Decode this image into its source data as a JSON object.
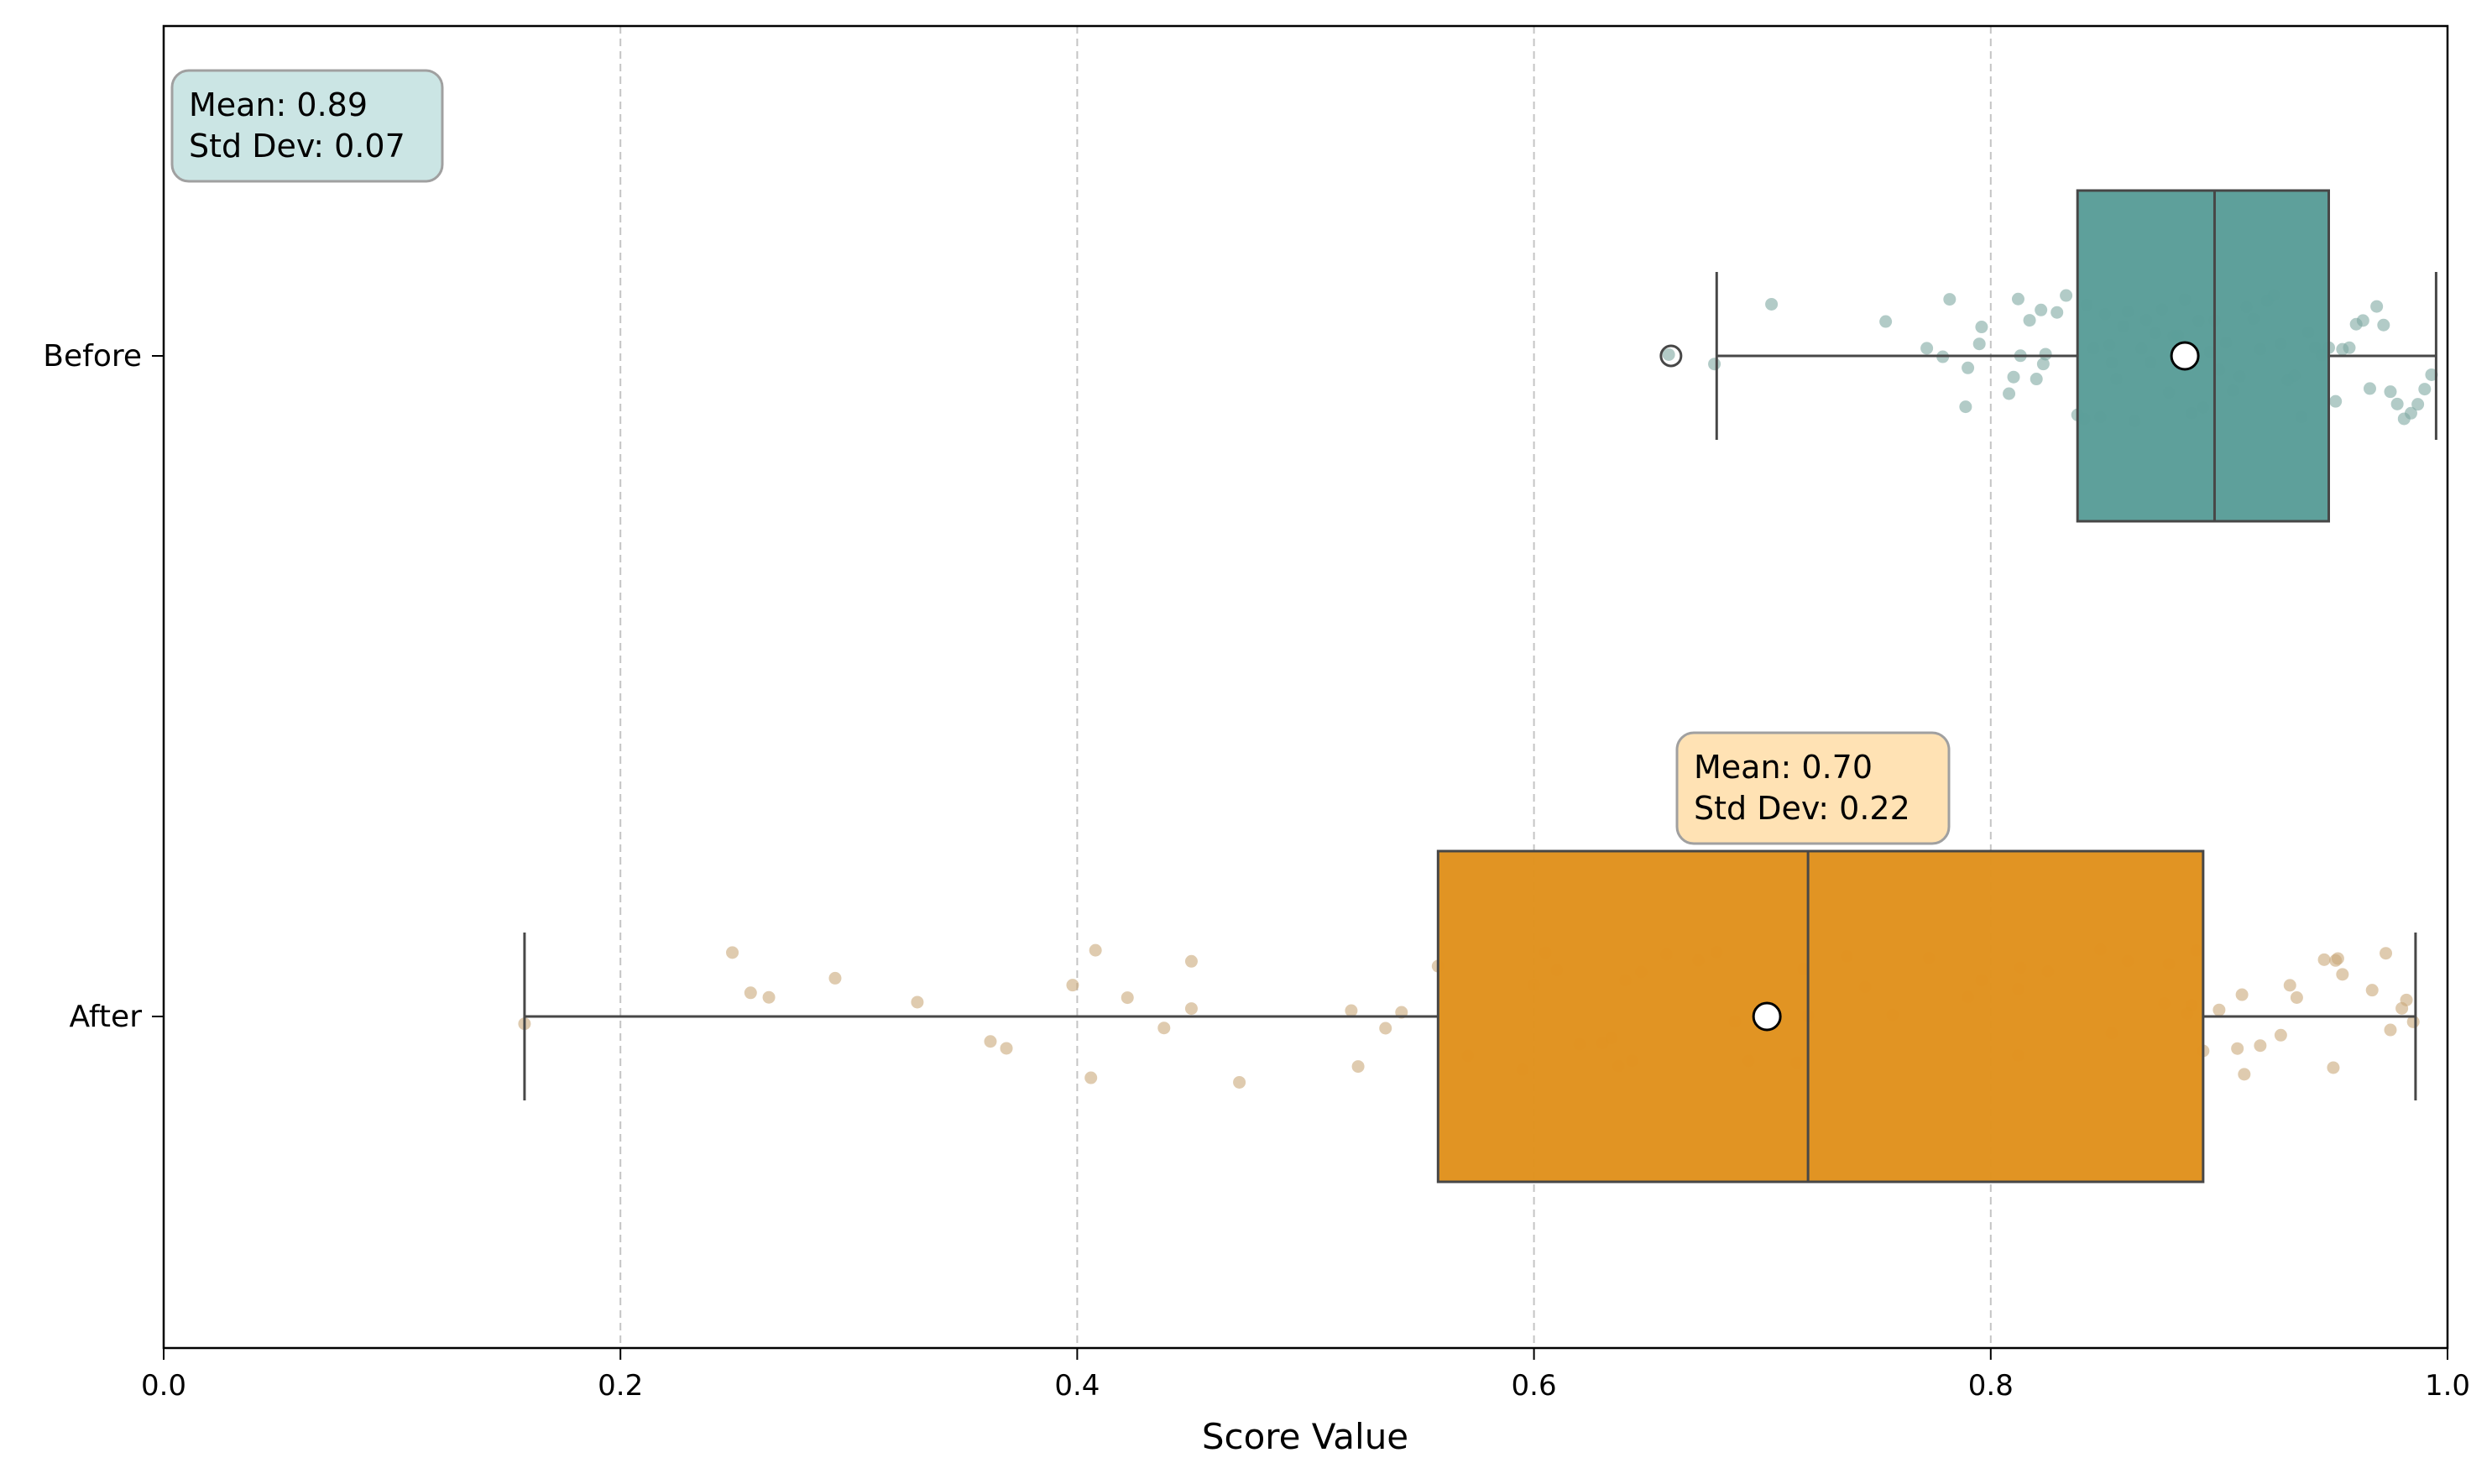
{
  "chart_data": {
    "type": "box",
    "orientation": "horizontal",
    "xlabel": "Score Value",
    "xlim": [
      0.0,
      1.0
    ],
    "xticks": [
      "0.0",
      "0.2",
      "0.4",
      "0.6",
      "0.8",
      "1.0"
    ],
    "grid": "x-dashed",
    "categories": [
      "Before",
      "After"
    ],
    "series": [
      {
        "category": "Before",
        "color": "#5b9e99",
        "point_color": "#7fa9a1",
        "whisker_low": 0.68,
        "q1": 0.838,
        "median": 0.898,
        "q3": 0.948,
        "whisker_high": 0.995,
        "mean": 0.885,
        "outliers": [
          0.66
        ],
        "annotation": {
          "mean": "Mean: 0.89",
          "std": "Std Dev: 0.07"
        },
        "annotation_color": "#c8e4e3",
        "points": [
          0.659,
          0.679,
          0.704,
          0.754,
          0.772,
          0.779,
          0.782,
          0.789,
          0.79,
          0.795,
          0.796,
          0.808,
          0.81,
          0.812,
          0.813,
          0.817,
          0.82,
          0.822,
          0.823,
          0.824,
          0.829,
          0.833,
          0.838,
          0.841,
          0.842,
          0.845,
          0.848,
          0.85,
          0.852,
          0.853,
          0.855,
          0.858,
          0.86,
          0.863,
          0.866,
          0.868,
          0.87,
          0.872,
          0.875,
          0.878,
          0.88,
          0.882,
          0.885,
          0.888,
          0.891,
          0.893,
          0.896,
          0.898,
          0.9,
          0.903,
          0.906,
          0.909,
          0.912,
          0.915,
          0.918,
          0.921,
          0.924,
          0.927,
          0.93,
          0.933,
          0.936,
          0.939,
          0.942,
          0.945,
          0.948,
          0.951,
          0.954,
          0.957,
          0.96,
          0.963,
          0.966,
          0.969,
          0.972,
          0.975,
          0.978,
          0.981,
          0.984,
          0.987,
          0.99,
          0.993
        ]
      },
      {
        "category": "After",
        "color": "#e0921f",
        "point_color": "#c9a97a",
        "whisker_low": 0.158,
        "q1": 0.558,
        "median": 0.72,
        "q3": 0.893,
        "whisker_high": 0.986,
        "mean": 0.702,
        "outliers": [],
        "annotation": {
          "mean": "Mean: 0.70",
          "std": "Std Dev: 0.22"
        },
        "annotation_color": "#ffe0b0",
        "points": [
          0.158,
          0.249,
          0.257,
          0.265,
          0.294,
          0.33,
          0.362,
          0.369,
          0.398,
          0.406,
          0.408,
          0.422,
          0.438,
          0.45,
          0.45,
          0.471,
          0.52,
          0.523,
          0.535,
          0.542,
          0.558,
          0.571,
          0.595,
          0.6,
          0.605,
          0.61,
          0.62,
          0.63,
          0.634,
          0.637,
          0.64,
          0.643,
          0.647,
          0.658,
          0.672,
          0.68,
          0.688,
          0.694,
          0.715,
          0.718,
          0.72,
          0.737,
          0.745,
          0.757,
          0.773,
          0.79,
          0.796,
          0.812,
          0.812,
          0.813,
          0.825,
          0.848,
          0.853,
          0.86,
          0.876,
          0.878,
          0.886,
          0.888,
          0.89,
          0.893,
          0.9,
          0.908,
          0.91,
          0.911,
          0.918,
          0.927,
          0.931,
          0.934,
          0.946,
          0.95,
          0.951,
          0.952,
          0.954,
          0.967,
          0.973,
          0.975,
          0.98,
          0.982,
          0.985
        ]
      }
    ]
  }
}
